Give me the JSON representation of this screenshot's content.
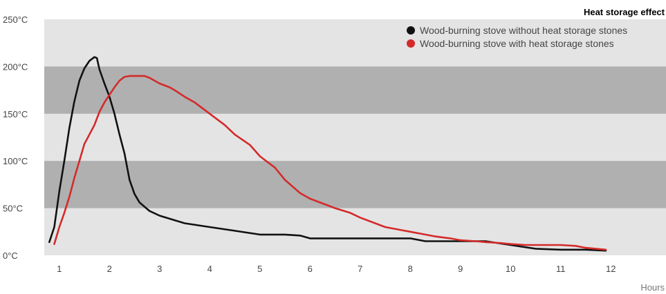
{
  "chart_data": {
    "type": "line",
    "title": "Heat storage effect",
    "xlabel": "Hours",
    "ylabel": "",
    "xlim": [
      0.7,
      12.4
    ],
    "ylim": [
      0,
      250
    ],
    "x_ticks": [
      1,
      2,
      3,
      4,
      5,
      6,
      7,
      8,
      9,
      10,
      11,
      12
    ],
    "y_ticks": [
      {
        "value": 0,
        "label": "0°C"
      },
      {
        "value": 50,
        "label": "50°C"
      },
      {
        "value": 100,
        "label": "100°C"
      },
      {
        "value": 150,
        "label": "150°C"
      },
      {
        "value": 200,
        "label": "200°C"
      },
      {
        "value": 250,
        "label": "250°C"
      }
    ],
    "bands": {
      "light": "#e4e4e4",
      "dark": "#b0b0b0",
      "dark_ranges": [
        [
          50,
          100
        ],
        [
          150,
          200
        ]
      ]
    },
    "legend_position": "top-right",
    "series": [
      {
        "name": "Wood-burning stove without heat storage stones",
        "color": "#111111",
        "x": [
          0.8,
          0.9,
          1.0,
          1.1,
          1.2,
          1.3,
          1.4,
          1.5,
          1.6,
          1.7,
          1.75,
          1.8,
          1.9,
          2.0,
          2.1,
          2.2,
          2.3,
          2.4,
          2.5,
          2.6,
          2.8,
          3.0,
          3.5,
          4.0,
          4.5,
          5.0,
          5.5,
          5.8,
          6.0,
          6.5,
          7.0,
          7.5,
          8.0,
          8.3,
          8.5,
          9.0,
          9.5,
          10.0,
          10.5,
          11.0,
          11.5,
          11.9
        ],
        "y": [
          14,
          30,
          68,
          100,
          135,
          163,
          185,
          198,
          206,
          210,
          209,
          197,
          182,
          168,
          150,
          128,
          108,
          80,
          65,
          56,
          47,
          42,
          34,
          30,
          26,
          22,
          22,
          21,
          18,
          18,
          18,
          18,
          18,
          15,
          15,
          15,
          15,
          11,
          7,
          6,
          6,
          5
        ]
      },
      {
        "name": "Wood-burning stove with heat storage stones",
        "color": "#d42a2a",
        "x": [
          0.9,
          1.0,
          1.1,
          1.2,
          1.3,
          1.4,
          1.5,
          1.6,
          1.7,
          1.8,
          1.9,
          2.0,
          2.1,
          2.2,
          2.3,
          2.4,
          2.5,
          2.6,
          2.7,
          2.8,
          3.0,
          3.2,
          3.3,
          3.5,
          3.7,
          4.0,
          4.3,
          4.5,
          4.8,
          5.0,
          5.3,
          5.5,
          5.8,
          6.0,
          6.3,
          6.5,
          6.8,
          7.0,
          7.3,
          7.5,
          7.8,
          8.0,
          8.3,
          8.5,
          8.8,
          9.0,
          9.3,
          9.5,
          9.8,
          10.0,
          10.3,
          10.5,
          11.0,
          11.3,
          11.5,
          11.7,
          11.9
        ],
        "y": [
          12,
          30,
          45,
          62,
          82,
          100,
          118,
          128,
          138,
          152,
          162,
          170,
          178,
          185,
          189,
          190,
          190,
          190,
          190,
          188,
          182,
          178,
          175,
          168,
          162,
          150,
          138,
          128,
          117,
          105,
          93,
          80,
          66,
          60,
          54,
          50,
          45,
          40,
          34,
          30,
          27,
          25,
          22,
          20,
          18,
          16,
          15,
          14,
          13,
          12,
          11,
          11,
          11,
          10,
          8,
          7,
          6
        ]
      }
    ]
  }
}
